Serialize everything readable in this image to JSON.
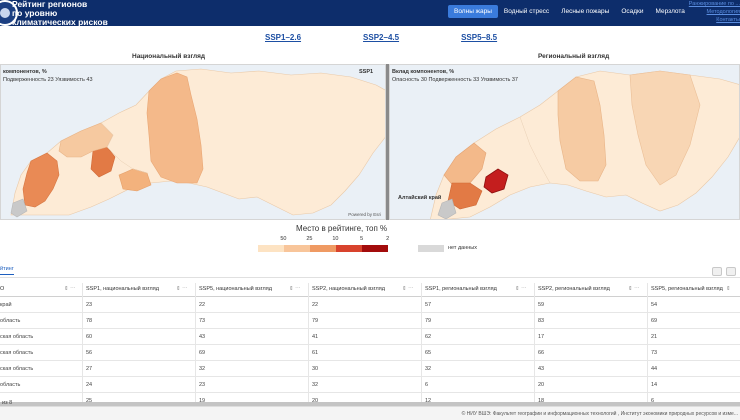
{
  "header": {
    "title_lines": [
      "Рейтинг регионов",
      "по уровню",
      "климатических рисков"
    ],
    "nav": [
      "Волны жары",
      "Водный стресс",
      "Лесные пожары",
      "Осадки",
      "Мерзлота"
    ],
    "top_links": [
      "Ранжирование по ...",
      "Методология",
      "Контакты"
    ]
  },
  "scenarios": [
    "SSP1–2.6",
    "SSP2–4.5",
    "SSP5–8.5"
  ],
  "maps": {
    "national": {
      "title": "Национальный взгляд",
      "info_label": "компонентов, %",
      "info_values": "Подверженность 23  Уязвимость 43",
      "scenario": "SSP1",
      "powered": "Powered by Esri"
    },
    "regional": {
      "title": "Региональный взгляд",
      "info_label": "Вклад компонентов, %",
      "info_values": "Опасность 30  Подверженность 33  Уязвимость 37",
      "region_label": "Алтайский край"
    }
  },
  "legend": {
    "title": "Место в рейтинге, топ %",
    "ticks": [
      "50",
      "25",
      "10",
      "5",
      "2"
    ],
    "colors": [
      "#fde3c3",
      "#f8c59a",
      "#ef9a63",
      "#d8432d",
      "#a30c0c"
    ],
    "nodata_color": "#d9d9d9",
    "nodata_label": "нет данных"
  },
  "table": {
    "tab_label": "йтинг",
    "columns": [
      "О",
      "SSP1, национальный взгляд",
      "SSP5, национальный взгляд",
      "SSP2, национальный взгляд",
      "SSP1, региональный взгляд",
      "SSP2, региональный взгляд",
      "SSP5, региональный взгляд"
    ],
    "rows": [
      {
        "region": "край",
        "values": [
          "23",
          "22",
          "22",
          "57",
          "59",
          "54"
        ]
      },
      {
        "region": "область",
        "values": [
          "78",
          "73",
          "79",
          "79",
          "83",
          "69"
        ]
      },
      {
        "region": "ская область",
        "values": [
          "60",
          "43",
          "41",
          "62",
          "17",
          "21"
        ]
      },
      {
        "region": "ская область",
        "values": [
          "56",
          "69",
          "61",
          "65",
          "66",
          "73"
        ]
      },
      {
        "region": "ская область",
        "values": [
          "27",
          "32",
          "30",
          "32",
          "43",
          "44"
        ]
      },
      {
        "region": "область",
        "values": [
          "24",
          "23",
          "32",
          "6",
          "20",
          "14"
        ]
      },
      {
        "region": "",
        "values": [
          "25",
          "19",
          "20",
          "12",
          "18",
          "6"
        ]
      }
    ],
    "footer_left": "из 8"
  },
  "footer": {
    "text": "© НИУ ВШЭ: Факультет географии и информационных технологий , Институт экономики природных ресурсов и изме..."
  }
}
